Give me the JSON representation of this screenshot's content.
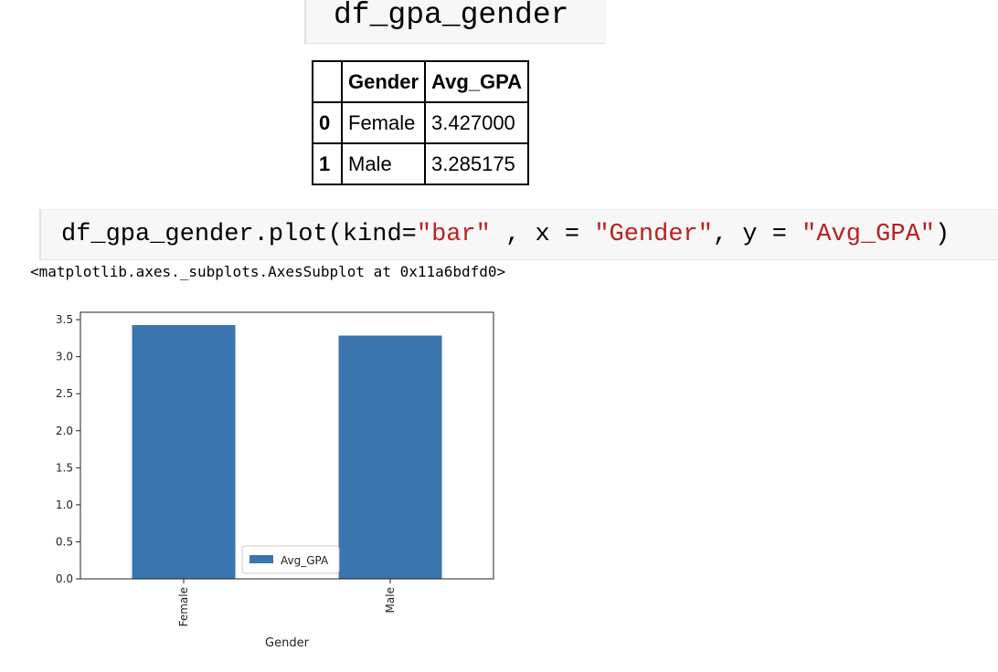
{
  "cell1": {
    "code": "df_gpa_gender"
  },
  "table": {
    "columns": [
      "",
      "Gender",
      "Avg_GPA"
    ],
    "rows": [
      {
        "index": "0",
        "gender": "Female",
        "avg_gpa": "3.427000"
      },
      {
        "index": "1",
        "gender": "Male",
        "avg_gpa": "3.285175"
      }
    ]
  },
  "cell2": {
    "code_prefix": "df_gpa_gender.plot(kind=",
    "kind_str": "\"bar\"",
    "code_mid1": " , x = ",
    "x_str": "\"Gender\"",
    "code_mid2": ", y = ",
    "y_str": "\"Avg_GPA\"",
    "code_suffix": ")"
  },
  "output_repr": "<matplotlib.axes._subplots.AxesSubplot at 0x11a6bdfd0>",
  "chart_data": {
    "type": "bar",
    "categories": [
      "Female",
      "Male"
    ],
    "series": [
      {
        "name": "Avg_GPA",
        "values": [
          3.427,
          3.285175
        ],
        "color": "#3b75af"
      }
    ],
    "xlabel": "Gender",
    "ylabel": "",
    "ylim": [
      0,
      3.6
    ],
    "yticks": [
      0.0,
      0.5,
      1.0,
      1.5,
      2.0,
      2.5,
      3.0,
      3.5
    ],
    "ytick_labels": [
      "0.0",
      "0.5",
      "1.0",
      "1.5",
      "2.0",
      "2.5",
      "3.0",
      "3.5"
    ],
    "grid": false,
    "legend_position": "lower-center"
  }
}
